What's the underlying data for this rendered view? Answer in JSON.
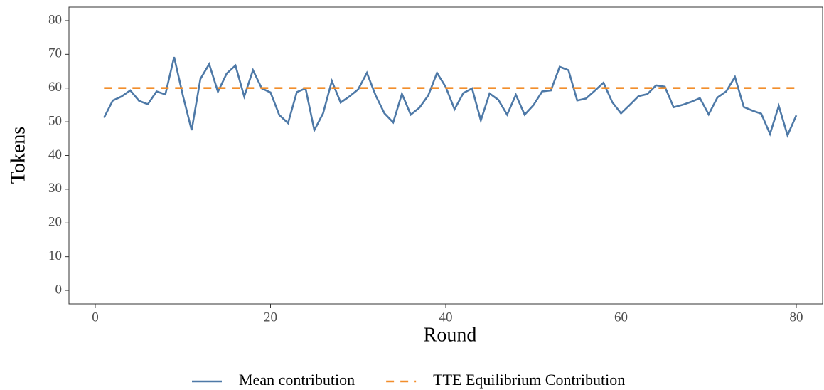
{
  "chart_data": {
    "type": "line",
    "x_label": "Round",
    "y_label": "Tokens",
    "xlim": [
      -3,
      83
    ],
    "ylim": [
      -4,
      84
    ],
    "xticks": [
      0,
      20,
      40,
      60,
      80
    ],
    "yticks": [
      0,
      10,
      20,
      30,
      40,
      50,
      60,
      70,
      80
    ],
    "x": [
      1,
      2,
      3,
      4,
      5,
      6,
      7,
      8,
      9,
      10,
      11,
      12,
      13,
      14,
      15,
      16,
      17,
      18,
      19,
      20,
      21,
      22,
      23,
      24,
      25,
      26,
      27,
      28,
      29,
      30,
      31,
      32,
      33,
      34,
      35,
      36,
      37,
      38,
      39,
      40,
      41,
      42,
      43,
      44,
      45,
      46,
      47,
      48,
      49,
      50,
      51,
      52,
      53,
      54,
      55,
      56,
      57,
      58,
      59,
      60,
      61,
      62,
      63,
      64,
      65,
      66,
      67,
      68,
      69,
      70,
      71,
      72,
      73,
      74,
      75,
      76,
      77,
      78,
      79,
      80
    ],
    "series": [
      {
        "name": "Mean contribution",
        "color": "#4e79a7",
        "dash": "solid",
        "values": [
          51.2,
          56.3,
          57.5,
          59.3,
          56.2,
          55.2,
          59.0,
          58.1,
          69.2,
          57.8,
          47.5,
          62.7,
          67.1,
          58.9,
          64.3,
          66.7,
          57.5,
          65.3,
          59.9,
          58.7,
          52.0,
          49.6,
          58.8,
          59.9,
          47.5,
          52.5,
          62.1,
          55.7,
          57.5,
          59.6,
          64.5,
          57.8,
          52.5,
          49.8,
          58.3,
          52.1,
          54.2,
          57.8,
          64.5,
          60.3,
          53.7,
          58.5,
          59.9,
          50.4,
          58.4,
          56.5,
          52.1,
          58.0,
          52.1,
          54.9,
          59.0,
          59.3,
          66.3,
          65.3,
          56.3,
          56.9,
          59.2,
          61.6,
          55.8,
          52.5,
          55.0,
          57.6,
          58.2,
          60.8,
          60.4,
          54.3,
          55.0,
          55.9,
          57.0,
          52.2,
          57.2,
          59.0,
          63.3,
          54.4,
          53.3,
          52.4,
          46.4,
          54.7,
          46.0,
          51.9
        ]
      },
      {
        "name": "TTE Equilibrium Contribution",
        "color": "#f28e2b",
        "dash": "dashed",
        "x": [
          1,
          80
        ],
        "values": [
          60,
          60
        ]
      }
    ]
  }
}
